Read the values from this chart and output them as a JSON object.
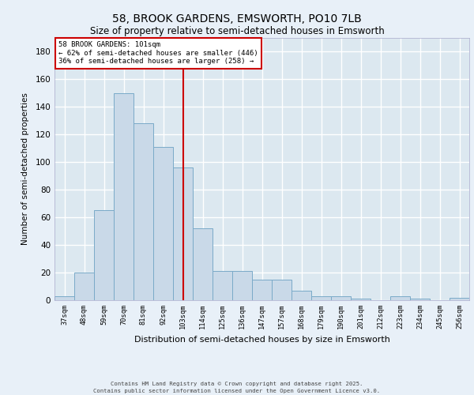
{
  "title1": "58, BROOK GARDENS, EMSWORTH, PO10 7LB",
  "title2": "Size of property relative to semi-detached houses in Emsworth",
  "xlabel": "Distribution of semi-detached houses by size in Emsworth",
  "ylabel": "Number of semi-detached properties",
  "bins": [
    "37sqm",
    "48sqm",
    "59sqm",
    "70sqm",
    "81sqm",
    "92sqm",
    "103sqm",
    "114sqm",
    "125sqm",
    "136sqm",
    "147sqm",
    "157sqm",
    "168sqm",
    "179sqm",
    "190sqm",
    "201sqm",
    "212sqm",
    "223sqm",
    "234sqm",
    "245sqm",
    "256sqm"
  ],
  "values": [
    3,
    20,
    65,
    150,
    128,
    111,
    96,
    52,
    21,
    21,
    15,
    15,
    7,
    3,
    3,
    1,
    0,
    3,
    1,
    0,
    2
  ],
  "bar_color": "#c9d9e8",
  "bar_edge_color": "#7aaac8",
  "vline_x": 6,
  "vline_color": "#cc0000",
  "annotation_title": "58 BROOK GARDENS: 101sqm",
  "annotation_line1": "← 62% of semi-detached houses are smaller (446)",
  "annotation_line2": "36% of semi-detached houses are larger (258) →",
  "annotation_box_color": "#ffffff",
  "annotation_box_edge": "#cc0000",
  "ylim": [
    0,
    190
  ],
  "yticks": [
    0,
    20,
    40,
    60,
    80,
    100,
    120,
    140,
    160,
    180
  ],
  "bg_color": "#dce8f0",
  "fig_bg_color": "#e8f0f8",
  "grid_color": "#ffffff",
  "footer1": "Contains HM Land Registry data © Crown copyright and database right 2025.",
  "footer2": "Contains public sector information licensed under the Open Government Licence v3.0."
}
